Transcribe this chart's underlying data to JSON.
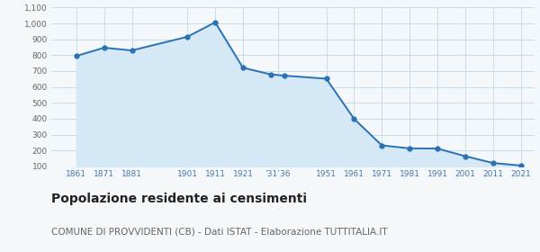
{
  "years": [
    1861,
    1871,
    1881,
    1901,
    1911,
    1921,
    1931,
    1936,
    1951,
    1961,
    1971,
    1981,
    1991,
    2001,
    2011,
    2021
  ],
  "population": [
    795,
    847,
    830,
    916,
    1007,
    721,
    679,
    671,
    652,
    399,
    232,
    213,
    212,
    164,
    121,
    105
  ],
  "ylim": [
    100,
    1100
  ],
  "yticks": [
    100,
    200,
    300,
    400,
    500,
    600,
    700,
    800,
    900,
    1000,
    1100
  ],
  "ytick_labels": [
    "100",
    "200",
    "300",
    "400",
    "500",
    "600",
    "700",
    "800",
    "900",
    "1,000",
    "1,100"
  ],
  "x_tick_positions": [
    1861,
    1871,
    1881,
    1901,
    1911,
    1921,
    1933.5,
    1951,
    1961,
    1971,
    1981,
    1991,
    2001,
    2011,
    2021
  ],
  "x_tick_labels": [
    "1861",
    "1871",
    "1881",
    "1901",
    "1911",
    "1921",
    "’31’36",
    "1951",
    "1961",
    "1971",
    "1981",
    "1991",
    "2001",
    "2011",
    "2021"
  ],
  "xlim_min": 1852,
  "xlim_max": 2026,
  "line_color": "#2a72b5",
  "fill_color": "#d4e8f5",
  "marker_color": "#2a72b5",
  "grid_color": "#c8dcea",
  "bg_color": "#f4f8fb",
  "title": "Popolazione residente ai censimenti",
  "subtitle": "COMUNE DI PROVVIDENTI (CB) - Dati ISTAT - Elaborazione TUTTITALIA.IT",
  "title_fontsize": 10,
  "subtitle_fontsize": 7.5
}
